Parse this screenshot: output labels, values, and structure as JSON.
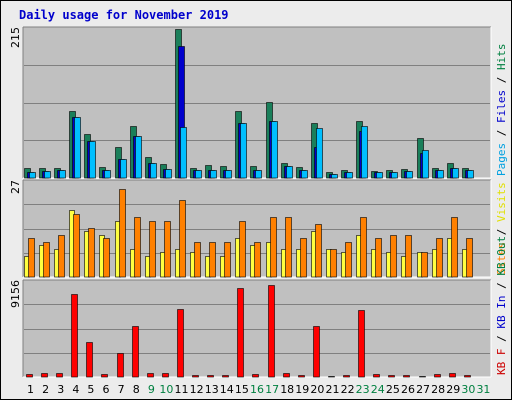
{
  "chart_data": {
    "type": "bar",
    "title": "Daily usage for November 2019",
    "categories": [
      "1",
      "2",
      "3",
      "4",
      "5",
      "6",
      "7",
      "8",
      "9",
      "10",
      "11",
      "12",
      "13",
      "14",
      "15",
      "16",
      "17",
      "18",
      "19",
      "20",
      "21",
      "22",
      "23",
      "24",
      "25",
      "26",
      "27",
      "28",
      "29",
      "30",
      "31"
    ],
    "weekend_days": [
      "9",
      "10",
      "16",
      "17",
      "23",
      "24",
      "30",
      "31"
    ],
    "panels": [
      {
        "name": "hits-files-pages",
        "ymax": 215,
        "ymax_label": "215",
        "legend": [
          {
            "text": "Pages",
            "color": "#00a0e0"
          },
          {
            "text": " / ",
            "color": "#000000"
          },
          {
            "text": "Files",
            "color": "#0000cc"
          },
          {
            "text": " / ",
            "color": "#000000"
          },
          {
            "text": "Hits",
            "color": "#008040"
          }
        ],
        "series": [
          {
            "name": "Hits",
            "color": "#1a7f5a",
            "values": [
              14,
              14,
              15,
              96,
              64,
              16,
              45,
              75,
              31,
              20,
              215,
              14,
              19,
              18,
              96,
              17,
              110,
              22,
              16,
              79,
              8,
              12,
              82,
              10,
              12,
              13,
              57,
              15,
              21,
              15,
              0
            ]
          },
          {
            "name": "Files",
            "color": "#0000cc",
            "values": [
              9,
              10,
              11,
              88,
              54,
              12,
              28,
              60,
              22,
              13,
              190,
              11,
              12,
              11,
              80,
              12,
              82,
              18,
              11,
              45,
              6,
              9,
              68,
              8,
              9,
              10,
              36,
              12,
              14,
              11,
              0
            ]
          },
          {
            "name": "Pages",
            "color": "#00bfff",
            "values": [
              9,
              10,
              11,
              88,
              54,
              12,
              28,
              60,
              22,
              13,
              73,
              11,
              12,
              11,
              80,
              12,
              82,
              18,
              11,
              72,
              6,
              9,
              75,
              8,
              9,
              10,
              40,
              12,
              14,
              11,
              0
            ]
          }
        ]
      },
      {
        "name": "visits-sites",
        "ymax": 27,
        "ymax_label": "27",
        "legend": [
          {
            "text": "Sites",
            "color": "#ff8000"
          },
          {
            "text": " / ",
            "color": "#000000"
          },
          {
            "text": "Visits",
            "color": "#e0e000"
          }
        ],
        "series": [
          {
            "name": "Visits",
            "color": "#ffff40",
            "values": [
              6,
              9,
              8,
              19,
              13,
              12,
              16,
              8,
              6,
              7,
              8,
              7,
              6,
              6,
              11,
              9,
              10,
              8,
              8,
              13,
              8,
              7,
              12,
              8,
              7,
              6,
              7,
              8,
              11,
              8,
              0
            ]
          },
          {
            "name": "Sites",
            "color": "#ff8000",
            "values": [
              11,
              10,
              12,
              18,
              14,
              11,
              25,
              17,
              16,
              16,
              22,
              10,
              10,
              10,
              16,
              10,
              17,
              17,
              11,
              15,
              8,
              10,
              17,
              11,
              12,
              12,
              7,
              11,
              17,
              11,
              0
            ]
          }
        ]
      },
      {
        "name": "kbytes",
        "ymax": 9156,
        "ymax_label": "9156",
        "legend": [
          {
            "text": "KB F",
            "color": "#cc0000"
          },
          {
            "text": " / ",
            "color": "#000000"
          },
          {
            "text": "KB In",
            "color": "#0000cc"
          },
          {
            "text": " / ",
            "color": "#000000"
          },
          {
            "text": "KB Out",
            "color": "#008040"
          }
        ],
        "series": [
          {
            "name": "KB F",
            "color": "#ff0000",
            "values": [
              300,
              400,
              400,
              8000,
              3400,
              300,
              2300,
              4900,
              400,
              400,
              6600,
              200,
              200,
              200,
              8600,
              300,
              8900,
              400,
              200,
              4900,
              100,
              200,
              6500,
              300,
              200,
              200,
              100,
              300,
              400,
              200,
              0
            ]
          }
        ]
      }
    ]
  }
}
